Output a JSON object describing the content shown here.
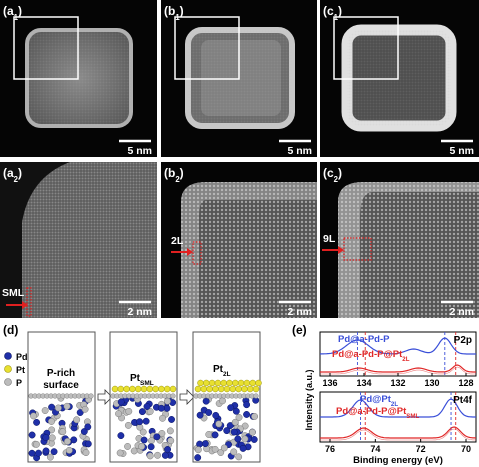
{
  "panels": [
    {
      "label": [
        "(a",
        "1",
        ")"
      ],
      "scale": "5 nm"
    },
    {
      "label": [
        "(b",
        "1",
        ")"
      ],
      "scale": "5 nm"
    },
    {
      "label": [
        "(c",
        "1",
        ")"
      ],
      "scale": "5 nm"
    },
    {
      "label": [
        "(a",
        "2",
        ")"
      ],
      "scale": "2 nm",
      "marker": "SML"
    },
    {
      "label": [
        "(b",
        "2",
        ")"
      ],
      "scale": "2 nm",
      "marker": "2L"
    },
    {
      "label": [
        "(c",
        "2",
        ")"
      ],
      "scale": "2 nm",
      "marker": "9L"
    }
  ],
  "schematic": {
    "label": "(d)",
    "legend": [
      "Pd",
      "Pt",
      "P"
    ],
    "stages": [
      {
        "text": [
          "P-rich",
          "surface"
        ]
      },
      {
        "text": [
          "Pt",
          "SML"
        ]
      },
      {
        "text": [
          "Pt",
          "2L"
        ]
      }
    ]
  },
  "xps": {
    "label": "(e)",
    "ylabel": "Intensity (a.u.)",
    "xlabel": "Binding energy (eV)",
    "plots": [
      {
        "title": "P2p",
        "ticks": [
          "136",
          "134",
          "132",
          "130",
          "128"
        ],
        "series": [
          [
            "Pd@a-Pd-P"
          ],
          [
            "Pd@a-Pd-P@Pt",
            "2L"
          ]
        ]
      },
      {
        "title": "Pt4f",
        "ticks": [
          "76",
          "74",
          "72",
          "70"
        ],
        "series": [
          [
            "Pd@Pt",
            "2L"
          ],
          [
            "Pd@a-Pd-P@Pt",
            "SML"
          ]
        ]
      }
    ]
  }
}
